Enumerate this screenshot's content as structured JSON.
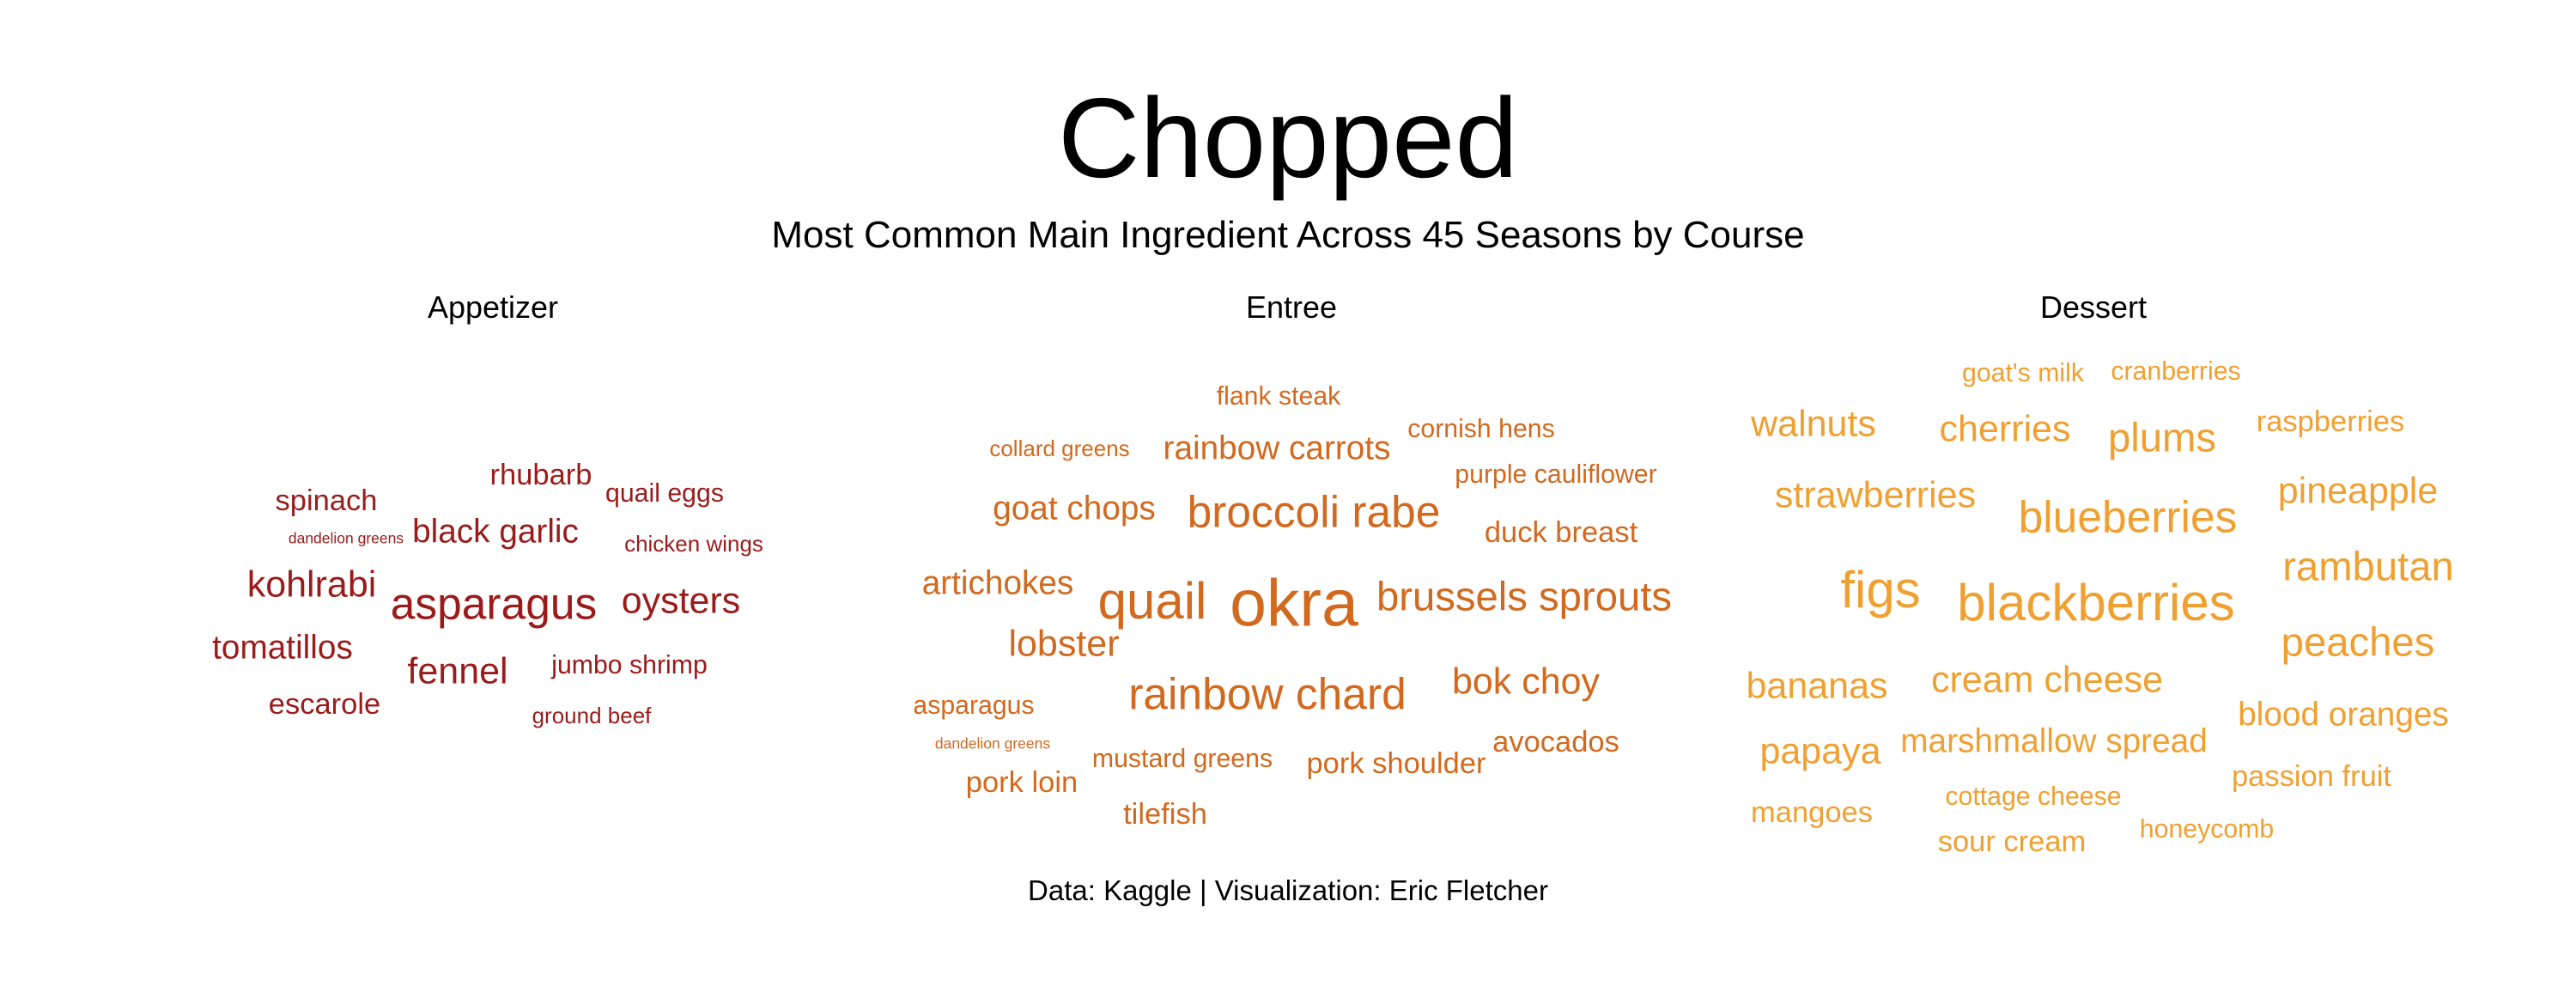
{
  "title": "Chopped",
  "subtitle": "Most Common Main Ingredient Across 45 Seasons by Course",
  "caption": "Data: Kaggle | Visualization: Eric Fletcher",
  "colors": {
    "appetizer": "#9b1b1b",
    "entree": "#d2691e",
    "dessert": "#f0a030"
  },
  "chart_data": [
    {
      "type": "wordcloud",
      "title": "Appetizer",
      "words": [
        {
          "text": "asparagus",
          "value": 5
        },
        {
          "text": "fennel",
          "value": 4
        },
        {
          "text": "kohlrabi",
          "value": 4
        },
        {
          "text": "oysters",
          "value": 4
        },
        {
          "text": "black garlic",
          "value": 3.5
        },
        {
          "text": "tomatillos",
          "value": 3.5
        },
        {
          "text": "rhubarb",
          "value": 3
        },
        {
          "text": "spinach",
          "value": 3
        },
        {
          "text": "escarole",
          "value": 3
        },
        {
          "text": "jumbo shrimp",
          "value": 2.5
        },
        {
          "text": "quail eggs",
          "value": 2.5
        },
        {
          "text": "ground beef",
          "value": 2
        },
        {
          "text": "chicken wings",
          "value": 2
        },
        {
          "text": "dandelion greens",
          "value": 1
        }
      ]
    },
    {
      "type": "wordcloud",
      "title": "Entree",
      "words": [
        {
          "text": "okra",
          "value": 8
        },
        {
          "text": "quail",
          "value": 6
        },
        {
          "text": "rainbow chard",
          "value": 5
        },
        {
          "text": "broccoli rabe",
          "value": 5
        },
        {
          "text": "brussels sprouts",
          "value": 4.5
        },
        {
          "text": "lobster",
          "value": 4
        },
        {
          "text": "bok choy",
          "value": 4
        },
        {
          "text": "goat chops",
          "value": 3.5
        },
        {
          "text": "rainbow carrots",
          "value": 3.5
        },
        {
          "text": "artichokes",
          "value": 3.5
        },
        {
          "text": "duck breast",
          "value": 3
        },
        {
          "text": "avocados",
          "value": 3
        },
        {
          "text": "tilefish",
          "value": 3
        },
        {
          "text": "pork loin",
          "value": 3
        },
        {
          "text": "pork shoulder",
          "value": 3
        },
        {
          "text": "mustard greens",
          "value": 2.5
        },
        {
          "text": "asparagus",
          "value": 2.5
        },
        {
          "text": "flank steak",
          "value": 2.5
        },
        {
          "text": "cornish hens",
          "value": 2.5
        },
        {
          "text": "purple cauliflower",
          "value": 2.5
        },
        {
          "text": "collard greens",
          "value": 2
        },
        {
          "text": "dandelion greens",
          "value": 1
        }
      ]
    },
    {
      "type": "wordcloud",
      "title": "Dessert",
      "words": [
        {
          "text": "figs",
          "value": 6
        },
        {
          "text": "blackberries",
          "value": 6
        },
        {
          "text": "blueberries",
          "value": 5
        },
        {
          "text": "rambutan",
          "value": 4.5
        },
        {
          "text": "peaches",
          "value": 4.5
        },
        {
          "text": "plums",
          "value": 4.5
        },
        {
          "text": "bananas",
          "value": 4
        },
        {
          "text": "strawberries",
          "value": 4
        },
        {
          "text": "cream cheese",
          "value": 4
        },
        {
          "text": "pineapple",
          "value": 4
        },
        {
          "text": "papaya",
          "value": 4
        },
        {
          "text": "cherries",
          "value": 4
        },
        {
          "text": "walnuts",
          "value": 4
        },
        {
          "text": "blood oranges",
          "value": 3.5
        },
        {
          "text": "marshmallow spread",
          "value": 3.5
        },
        {
          "text": "passion fruit",
          "value": 3
        },
        {
          "text": "mangoes",
          "value": 3
        },
        {
          "text": "raspberries",
          "value": 3
        },
        {
          "text": "sour cream",
          "value": 3
        },
        {
          "text": "cottage cheese",
          "value": 2.5
        },
        {
          "text": "cranberries",
          "value": 2.5
        },
        {
          "text": "goat's milk",
          "value": 2.5
        },
        {
          "text": "honeycomb",
          "value": 2.5
        }
      ]
    }
  ]
}
